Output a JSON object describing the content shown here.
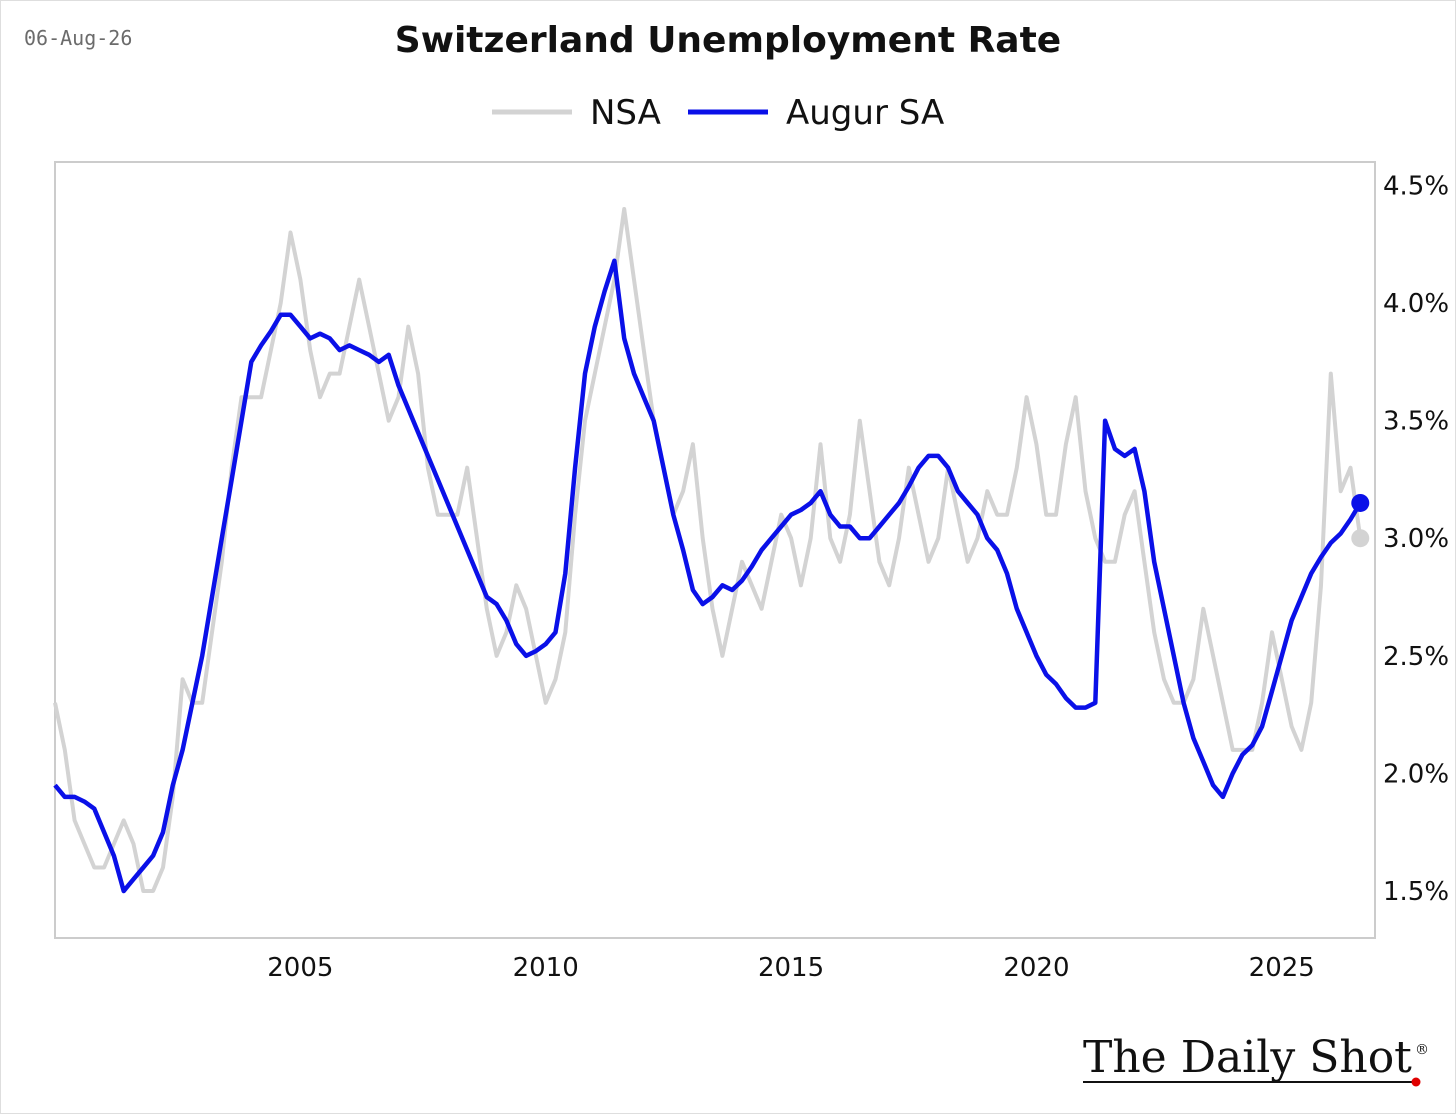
{
  "header": {
    "date": "06-Aug-26",
    "title": "Switzerland Unemployment Rate"
  },
  "branding": {
    "logo_text": "The Daily Shot",
    "logo_mark": "®",
    "dot_color": "#e00000"
  },
  "colors": {
    "nsa": "#d3d3d3",
    "sa": "#0a10e8",
    "axis": "#cccccc"
  },
  "chart_data": {
    "type": "line",
    "title": "Switzerland Unemployment Rate",
    "xlabel": "",
    "ylabel": "",
    "x_ticks": [
      "2005",
      "2010",
      "2015",
      "2020",
      "2025"
    ],
    "y_ticks": [
      "1.5%",
      "2.0%",
      "2.5%",
      "3.0%",
      "3.5%",
      "4.0%",
      "4.5%"
    ],
    "xlim": [
      2000.0,
      2026.9
    ],
    "ylim": [
      1.3,
      4.6
    ],
    "y_axis_side": "right",
    "grid": false,
    "legend": {
      "position": "top-center",
      "entries": [
        "NSA",
        "Augur SA"
      ]
    },
    "series": [
      {
        "name": "NSA",
        "color": "#d3d3d3",
        "points": [
          [
            2000.0,
            2.3
          ],
          [
            2000.2,
            2.1
          ],
          [
            2000.4,
            1.8
          ],
          [
            2000.6,
            1.7
          ],
          [
            2000.8,
            1.6
          ],
          [
            2001.0,
            1.6
          ],
          [
            2001.2,
            1.7
          ],
          [
            2001.4,
            1.8
          ],
          [
            2001.6,
            1.7
          ],
          [
            2001.8,
            1.5
          ],
          [
            2002.0,
            1.5
          ],
          [
            2002.2,
            1.6
          ],
          [
            2002.4,
            1.9
          ],
          [
            2002.6,
            2.4
          ],
          [
            2002.8,
            2.3
          ],
          [
            2003.0,
            2.3
          ],
          [
            2003.2,
            2.6
          ],
          [
            2003.4,
            2.9
          ],
          [
            2003.6,
            3.3
          ],
          [
            2003.8,
            3.6
          ],
          [
            2004.0,
            3.6
          ],
          [
            2004.2,
            3.6
          ],
          [
            2004.4,
            3.8
          ],
          [
            2004.6,
            4.0
          ],
          [
            2004.8,
            4.3
          ],
          [
            2005.0,
            4.1
          ],
          [
            2005.2,
            3.8
          ],
          [
            2005.4,
            3.6
          ],
          [
            2005.6,
            3.7
          ],
          [
            2005.8,
            3.7
          ],
          [
            2006.0,
            3.9
          ],
          [
            2006.2,
            4.1
          ],
          [
            2006.4,
            3.9
          ],
          [
            2006.6,
            3.7
          ],
          [
            2006.8,
            3.5
          ],
          [
            2007.0,
            3.6
          ],
          [
            2007.2,
            3.9
          ],
          [
            2007.4,
            3.7
          ],
          [
            2007.6,
            3.3
          ],
          [
            2007.8,
            3.1
          ],
          [
            2008.0,
            3.1
          ],
          [
            2008.2,
            3.1
          ],
          [
            2008.4,
            3.3
          ],
          [
            2008.6,
            3.0
          ],
          [
            2008.8,
            2.7
          ],
          [
            2009.0,
            2.5
          ],
          [
            2009.2,
            2.6
          ],
          [
            2009.4,
            2.8
          ],
          [
            2009.6,
            2.7
          ],
          [
            2009.8,
            2.5
          ],
          [
            2010.0,
            2.3
          ],
          [
            2010.2,
            2.4
          ],
          [
            2010.4,
            2.6
          ],
          [
            2010.6,
            3.1
          ],
          [
            2010.8,
            3.5
          ],
          [
            2011.0,
            3.7
          ],
          [
            2011.2,
            3.9
          ],
          [
            2011.4,
            4.1
          ],
          [
            2011.6,
            4.4
          ],
          [
            2011.8,
            4.1
          ],
          [
            2012.0,
            3.8
          ],
          [
            2012.2,
            3.5
          ],
          [
            2012.4,
            3.3
          ],
          [
            2012.6,
            3.1
          ],
          [
            2012.8,
            3.2
          ],
          [
            2013.0,
            3.4
          ],
          [
            2013.2,
            3.0
          ],
          [
            2013.4,
            2.7
          ],
          [
            2013.6,
            2.5
          ],
          [
            2013.8,
            2.7
          ],
          [
            2014.0,
            2.9
          ],
          [
            2014.2,
            2.8
          ],
          [
            2014.4,
            2.7
          ],
          [
            2014.6,
            2.9
          ],
          [
            2014.8,
            3.1
          ],
          [
            2015.0,
            3.0
          ],
          [
            2015.2,
            2.8
          ],
          [
            2015.4,
            3.0
          ],
          [
            2015.6,
            3.4
          ],
          [
            2015.8,
            3.0
          ],
          [
            2016.0,
            2.9
          ],
          [
            2016.2,
            3.1
          ],
          [
            2016.4,
            3.5
          ],
          [
            2016.6,
            3.2
          ],
          [
            2016.8,
            2.9
          ],
          [
            2017.0,
            2.8
          ],
          [
            2017.2,
            3.0
          ],
          [
            2017.4,
            3.3
          ],
          [
            2017.6,
            3.1
          ],
          [
            2017.8,
            2.9
          ],
          [
            2018.0,
            3.0
          ],
          [
            2018.2,
            3.3
          ],
          [
            2018.4,
            3.1
          ],
          [
            2018.6,
            2.9
          ],
          [
            2018.8,
            3.0
          ],
          [
            2019.0,
            3.2
          ],
          [
            2019.2,
            3.1
          ],
          [
            2019.4,
            3.1
          ],
          [
            2019.6,
            3.3
          ],
          [
            2019.8,
            3.6
          ],
          [
            2020.0,
            3.4
          ],
          [
            2020.2,
            3.1
          ],
          [
            2020.4,
            3.1
          ],
          [
            2020.6,
            3.4
          ],
          [
            2020.8,
            3.6
          ],
          [
            2021.0,
            3.2
          ],
          [
            2021.2,
            3.0
          ],
          [
            2021.4,
            2.9
          ],
          [
            2021.6,
            2.9
          ],
          [
            2021.8,
            3.1
          ],
          [
            2022.0,
            3.2
          ],
          [
            2022.2,
            2.9
          ],
          [
            2022.4,
            2.6
          ],
          [
            2022.6,
            2.4
          ],
          [
            2022.8,
            2.3
          ],
          [
            2023.0,
            2.3
          ],
          [
            2023.2,
            2.4
          ],
          [
            2023.4,
            2.7
          ],
          [
            2023.6,
            2.5
          ],
          [
            2023.8,
            2.3
          ],
          [
            2024.0,
            2.1
          ],
          [
            2024.2,
            2.1
          ],
          [
            2024.4,
            2.1
          ],
          [
            2024.6,
            2.3
          ],
          [
            2024.8,
            2.6
          ],
          [
            2025.0,
            2.4
          ],
          [
            2025.2,
            2.2
          ],
          [
            2025.4,
            2.1
          ],
          [
            2025.6,
            2.3
          ],
          [
            2025.8,
            2.8
          ],
          [
            2026.0,
            3.7
          ],
          [
            2026.2,
            3.2
          ],
          [
            2026.4,
            3.3
          ],
          [
            2026.6,
            3.0
          ]
        ]
      },
      {
        "name": "Augur SA",
        "color": "#0a10e8",
        "points": [
          [
            2000.0,
            1.95
          ],
          [
            2000.2,
            1.9
          ],
          [
            2000.4,
            1.9
          ],
          [
            2000.6,
            1.88
          ],
          [
            2000.8,
            1.85
          ],
          [
            2001.0,
            1.75
          ],
          [
            2001.2,
            1.65
          ],
          [
            2001.4,
            1.5
          ],
          [
            2001.6,
            1.55
          ],
          [
            2001.8,
            1.6
          ],
          [
            2002.0,
            1.65
          ],
          [
            2002.2,
            1.75
          ],
          [
            2002.4,
            1.95
          ],
          [
            2002.6,
            2.1
          ],
          [
            2002.8,
            2.3
          ],
          [
            2003.0,
            2.5
          ],
          [
            2003.2,
            2.75
          ],
          [
            2003.4,
            3.0
          ],
          [
            2003.6,
            3.25
          ],
          [
            2003.8,
            3.5
          ],
          [
            2004.0,
            3.75
          ],
          [
            2004.2,
            3.82
          ],
          [
            2004.4,
            3.88
          ],
          [
            2004.6,
            3.95
          ],
          [
            2004.8,
            3.95
          ],
          [
            2005.0,
            3.9
          ],
          [
            2005.2,
            3.85
          ],
          [
            2005.4,
            3.87
          ],
          [
            2005.6,
            3.85
          ],
          [
            2005.8,
            3.8
          ],
          [
            2006.0,
            3.82
          ],
          [
            2006.2,
            3.8
          ],
          [
            2006.4,
            3.78
          ],
          [
            2006.6,
            3.75
          ],
          [
            2006.8,
            3.78
          ],
          [
            2007.0,
            3.65
          ],
          [
            2007.2,
            3.55
          ],
          [
            2007.4,
            3.45
          ],
          [
            2007.6,
            3.35
          ],
          [
            2007.8,
            3.25
          ],
          [
            2008.0,
            3.15
          ],
          [
            2008.2,
            3.05
          ],
          [
            2008.4,
            2.95
          ],
          [
            2008.6,
            2.85
          ],
          [
            2008.8,
            2.75
          ],
          [
            2009.0,
            2.72
          ],
          [
            2009.2,
            2.65
          ],
          [
            2009.4,
            2.55
          ],
          [
            2009.6,
            2.5
          ],
          [
            2009.8,
            2.52
          ],
          [
            2010.0,
            2.55
          ],
          [
            2010.2,
            2.6
          ],
          [
            2010.4,
            2.85
          ],
          [
            2010.6,
            3.3
          ],
          [
            2010.8,
            3.7
          ],
          [
            2011.0,
            3.9
          ],
          [
            2011.2,
            4.05
          ],
          [
            2011.4,
            4.18
          ],
          [
            2011.6,
            3.85
          ],
          [
            2011.8,
            3.7
          ],
          [
            2012.0,
            3.6
          ],
          [
            2012.2,
            3.5
          ],
          [
            2012.4,
            3.3
          ],
          [
            2012.6,
            3.1
          ],
          [
            2012.8,
            2.95
          ],
          [
            2013.0,
            2.78
          ],
          [
            2013.2,
            2.72
          ],
          [
            2013.4,
            2.75
          ],
          [
            2013.6,
            2.8
          ],
          [
            2013.8,
            2.78
          ],
          [
            2014.0,
            2.82
          ],
          [
            2014.2,
            2.88
          ],
          [
            2014.4,
            2.95
          ],
          [
            2014.6,
            3.0
          ],
          [
            2014.8,
            3.05
          ],
          [
            2015.0,
            3.1
          ],
          [
            2015.2,
            3.12
          ],
          [
            2015.4,
            3.15
          ],
          [
            2015.6,
            3.2
          ],
          [
            2015.8,
            3.1
          ],
          [
            2016.0,
            3.05
          ],
          [
            2016.2,
            3.05
          ],
          [
            2016.4,
            3.0
          ],
          [
            2016.6,
            3.0
          ],
          [
            2016.8,
            3.05
          ],
          [
            2017.0,
            3.1
          ],
          [
            2017.2,
            3.15
          ],
          [
            2017.4,
            3.22
          ],
          [
            2017.6,
            3.3
          ],
          [
            2017.8,
            3.35
          ],
          [
            2018.0,
            3.35
          ],
          [
            2018.2,
            3.3
          ],
          [
            2018.4,
            3.2
          ],
          [
            2018.6,
            3.15
          ],
          [
            2018.8,
            3.1
          ],
          [
            2019.0,
            3.0
          ],
          [
            2019.2,
            2.95
          ],
          [
            2019.4,
            2.85
          ],
          [
            2019.6,
            2.7
          ],
          [
            2019.8,
            2.6
          ],
          [
            2020.0,
            2.5
          ],
          [
            2020.2,
            2.42
          ],
          [
            2020.4,
            2.38
          ],
          [
            2020.6,
            2.32
          ],
          [
            2020.8,
            2.28
          ],
          [
            2021.0,
            2.28
          ],
          [
            2021.2,
            2.3
          ],
          [
            2021.4,
            3.5
          ],
          [
            2021.6,
            3.38
          ],
          [
            2021.8,
            3.35
          ],
          [
            2022.0,
            3.38
          ],
          [
            2022.2,
            3.2
          ],
          [
            2022.4,
            2.9
          ],
          [
            2022.6,
            2.7
          ],
          [
            2022.8,
            2.5
          ],
          [
            2023.0,
            2.3
          ],
          [
            2023.2,
            2.15
          ],
          [
            2023.4,
            2.05
          ],
          [
            2023.6,
            1.95
          ],
          [
            2023.8,
            1.9
          ],
          [
            2024.0,
            2.0
          ],
          [
            2024.2,
            2.08
          ],
          [
            2024.4,
            2.12
          ],
          [
            2024.6,
            2.2
          ],
          [
            2024.8,
            2.35
          ],
          [
            2025.0,
            2.5
          ],
          [
            2025.2,
            2.65
          ],
          [
            2025.4,
            2.75
          ],
          [
            2025.6,
            2.85
          ],
          [
            2025.8,
            2.92
          ],
          [
            2026.0,
            2.98
          ],
          [
            2026.2,
            3.02
          ],
          [
            2026.4,
            3.08
          ],
          [
            2026.6,
            3.15
          ]
        ]
      }
    ]
  }
}
